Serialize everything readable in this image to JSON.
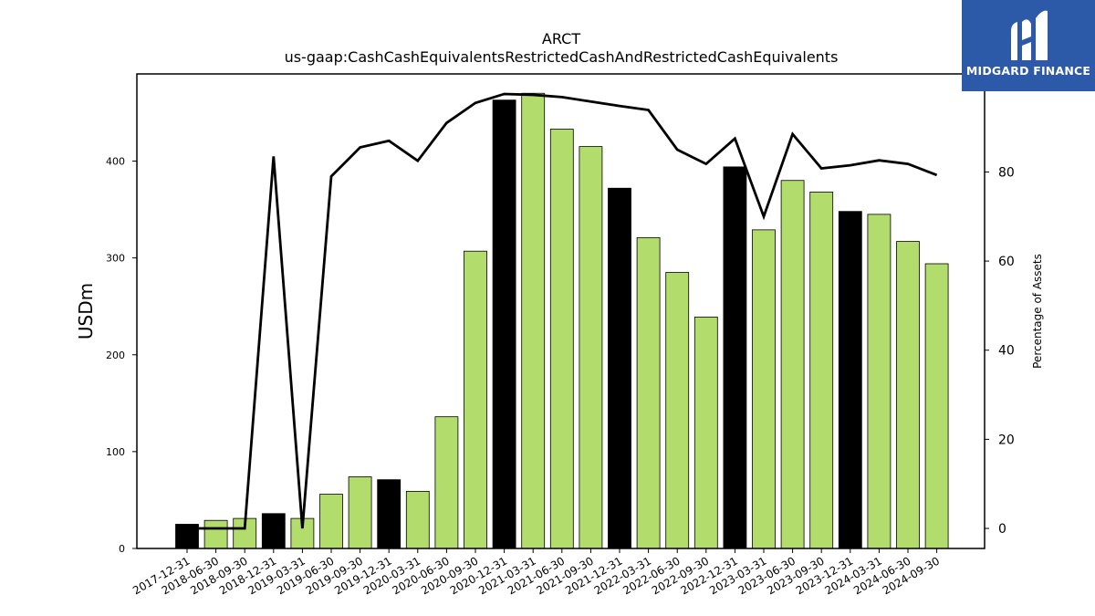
{
  "chart_data": {
    "type": "bar",
    "title": "ARCT",
    "subtitle": "us-gaap:CashCashEquivalentsRestrictedCashAndRestrictedCashEquivalents",
    "ylabel": "USDm",
    "y2label": "Percentage of Assets",
    "ylim": [
      0,
      490
    ],
    "y2lim": [
      -4.5,
      102
    ],
    "yticks": [
      0,
      100,
      200,
      300,
      400
    ],
    "y2ticks": [
      0,
      20,
      40,
      60,
      80
    ],
    "categories": [
      "2017-12-31",
      "2018-06-30",
      "2018-09-30",
      "2018-12-31",
      "2019-03-31",
      "2019-06-30",
      "2019-09-30",
      "2019-12-31",
      "2020-03-31",
      "2020-06-30",
      "2020-09-30",
      "2020-12-31",
      "2021-03-31",
      "2021-06-30",
      "2021-09-30",
      "2021-12-31",
      "2022-03-31",
      "2022-06-30",
      "2022-09-30",
      "2022-12-31",
      "2023-03-31",
      "2023-06-30",
      "2023-09-30",
      "2023-12-31",
      "2024-03-31",
      "2024-06-30",
      "2024-09-30"
    ],
    "series": [
      {
        "type": "bar",
        "values": [
          25,
          29,
          31,
          36,
          31,
          56,
          74,
          71,
          59,
          136,
          307,
          463,
          470,
          433,
          415,
          372,
          321,
          285,
          239,
          394,
          329,
          380,
          368,
          348,
          345,
          317,
          294
        ]
      },
      {
        "type": "line",
        "axis": "right",
        "values": [
          0,
          0,
          0,
          83.5,
          0,
          79,
          85.5,
          87,
          82.5,
          91,
          95.5,
          97.5,
          97.3,
          96.8,
          95.8,
          94.8,
          93.9,
          85,
          81.8,
          87.5,
          70,
          88.5,
          80.8,
          81.5,
          82.6,
          81.8,
          79.3
        ]
      }
    ],
    "bar_colors": {
      "year_end": "#000000",
      "other": "#b2dc6b"
    },
    "year_end_flags": [
      1,
      0,
      0,
      1,
      0,
      0,
      0,
      1,
      0,
      0,
      0,
      1,
      0,
      0,
      0,
      1,
      0,
      0,
      0,
      1,
      0,
      0,
      0,
      1,
      0,
      0,
      0
    ],
    "line_color": "#000000",
    "grid": false
  },
  "logo": {
    "text": "MIDGARD FINANCE",
    "background": "#2d5aa8",
    "icon": "midgard-logo-icon"
  }
}
